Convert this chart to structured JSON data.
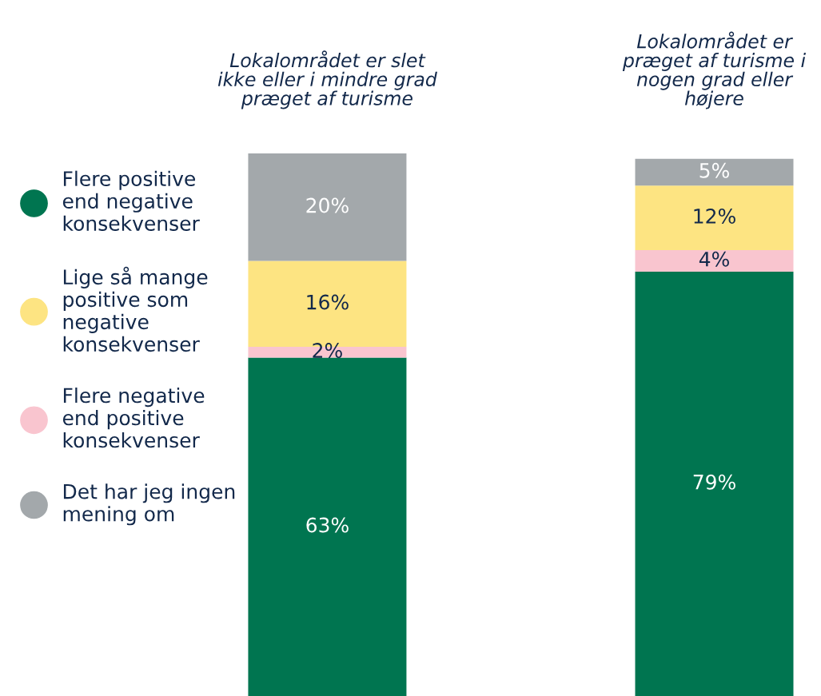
{
  "chart_data": {
    "type": "bar",
    "stacked": true,
    "categories": [
      "Lokalområdet er slet\nikke eller i mindre grad\npræget af turisme",
      "Lokalområdet er\npræget af turisme i\nnogen grad eller\nhøjere"
    ],
    "series": [
      {
        "name": "Flere positive\nend negative\nkonsekvenser",
        "color": "#007550",
        "values": [
          63,
          79
        ],
        "value_labels": [
          "63%",
          "79%"
        ]
      },
      {
        "name": "Flere negative\nend positive\nkonsekvenser",
        "color": "#f9c5cf",
        "values": [
          2,
          4
        ],
        "value_labels": [
          "2%",
          "4%"
        ]
      },
      {
        "name": "Lige så mange\npositive som\nnegative\nkonsekvenser",
        "color": "#fde482",
        "values": [
          16,
          12
        ],
        "value_labels": [
          "16%",
          "12%"
        ]
      },
      {
        "name": "Det har jeg ingen\nmening om",
        "color": "#a3a8ab",
        "values": [
          20,
          5
        ],
        "value_labels": [
          "20%",
          "5%"
        ]
      }
    ],
    "legend": "left",
    "grid": false
  }
}
